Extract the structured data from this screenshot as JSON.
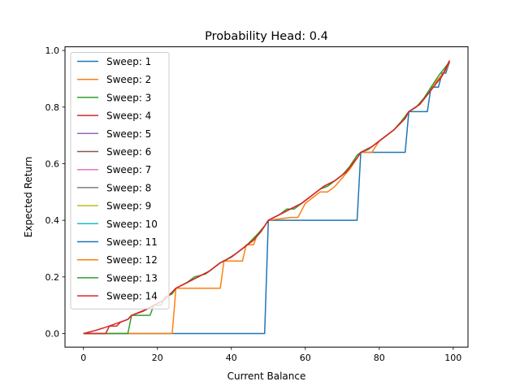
{
  "chart_data": {
    "type": "line",
    "title": "Probability Head: 0.4",
    "xlabel": "Current Balance",
    "ylabel": "Expected Return",
    "xlim": [
      -5,
      104
    ],
    "ylim": [
      -0.048,
      1.013
    ],
    "xticks": [
      0,
      20,
      40,
      60,
      80,
      100
    ],
    "xtick_labels": [
      "0",
      "20",
      "40",
      "60",
      "80",
      "100"
    ],
    "yticks": [
      0.0,
      0.2,
      0.4,
      0.6,
      0.8,
      1.0
    ],
    "ytick_labels": [
      "0.0",
      "0.2",
      "0.4",
      "0.6",
      "0.8",
      "1.0"
    ],
    "grid": false,
    "legend_position": "upper left",
    "series": [
      {
        "name": "Sweep: 1",
        "color": "#1f77b4",
        "points": [
          [
            0,
            0
          ],
          [
            49,
            0
          ],
          [
            50,
            0.4
          ],
          [
            74,
            0.4
          ],
          [
            75,
            0.64
          ],
          [
            87,
            0.64
          ],
          [
            88,
            0.784
          ],
          [
            93,
            0.784
          ],
          [
            94,
            0.8704
          ],
          [
            96,
            0.8704
          ],
          [
            97,
            0.92
          ],
          [
            98,
            0.92
          ],
          [
            99,
            0.96
          ]
        ]
      },
      {
        "name": "Sweep: 2",
        "color": "#ff7f0e",
        "points": [
          [
            0,
            0
          ],
          [
            24,
            0
          ],
          [
            25,
            0.16
          ],
          [
            37,
            0.16
          ],
          [
            38,
            0.256
          ],
          [
            43,
            0.256
          ],
          [
            44,
            0.3136
          ],
          [
            46,
            0.3136
          ],
          [
            47,
            0.35
          ],
          [
            49,
            0.38
          ],
          [
            50,
            0.4
          ],
          [
            56,
            0.41
          ],
          [
            58,
            0.41
          ],
          [
            60,
            0.46
          ],
          [
            62,
            0.48
          ],
          [
            64,
            0.5
          ],
          [
            66,
            0.5
          ],
          [
            68,
            0.52
          ],
          [
            70,
            0.55
          ],
          [
            72,
            0.58
          ],
          [
            74,
            0.62
          ],
          [
            75,
            0.64
          ],
          [
            78,
            0.64
          ],
          [
            80,
            0.68
          ],
          [
            82,
            0.7
          ],
          [
            84,
            0.72
          ],
          [
            86,
            0.75
          ],
          [
            88,
            0.784
          ],
          [
            90,
            0.8
          ],
          [
            92,
            0.83
          ],
          [
            94,
            0.87
          ],
          [
            96,
            0.9
          ],
          [
            98,
            0.93
          ],
          [
            99,
            0.96
          ]
        ]
      },
      {
        "name": "Sweep: 3",
        "color": "#2ca02c",
        "points": [
          [
            0,
            0
          ],
          [
            12,
            0
          ],
          [
            13,
            0.064
          ],
          [
            18,
            0.064
          ],
          [
            19,
            0.1
          ],
          [
            21,
            0.1
          ],
          [
            22,
            0.128
          ],
          [
            24,
            0.14
          ],
          [
            25,
            0.16
          ],
          [
            28,
            0.18
          ],
          [
            30,
            0.2
          ],
          [
            33,
            0.21
          ],
          [
            35,
            0.23
          ],
          [
            37,
            0.25
          ],
          [
            38,
            0.256
          ],
          [
            41,
            0.28
          ],
          [
            44,
            0.31
          ],
          [
            47,
            0.35
          ],
          [
            49,
            0.38
          ],
          [
            50,
            0.4
          ],
          [
            53,
            0.42
          ],
          [
            55,
            0.44
          ],
          [
            57,
            0.44
          ],
          [
            60,
            0.47
          ],
          [
            62,
            0.49
          ],
          [
            64,
            0.51
          ],
          [
            66,
            0.52
          ],
          [
            68,
            0.54
          ],
          [
            70,
            0.56
          ],
          [
            72,
            0.59
          ],
          [
            74,
            0.63
          ],
          [
            75,
            0.64
          ],
          [
            77,
            0.65
          ],
          [
            80,
            0.68
          ],
          [
            82,
            0.7
          ],
          [
            84,
            0.72
          ],
          [
            86,
            0.75
          ],
          [
            88,
            0.784
          ],
          [
            90,
            0.8
          ],
          [
            92,
            0.83
          ],
          [
            94,
            0.87
          ],
          [
            96,
            0.91
          ],
          [
            99,
            0.96
          ]
        ]
      },
      {
        "name": "Sweep: 4",
        "color": "#d62728",
        "points": [
          [
            0,
            0
          ],
          [
            6,
            0
          ],
          [
            7,
            0.026
          ],
          [
            9,
            0.026
          ],
          [
            10,
            0.04
          ],
          [
            12,
            0.05
          ],
          [
            13,
            0.064
          ],
          [
            16,
            0.08
          ],
          [
            19,
            0.1
          ],
          [
            22,
            0.12
          ],
          [
            25,
            0.16
          ],
          [
            28,
            0.18
          ],
          [
            31,
            0.2
          ],
          [
            34,
            0.22
          ],
          [
            37,
            0.25
          ],
          [
            40,
            0.27
          ],
          [
            43,
            0.3
          ],
          [
            46,
            0.33
          ],
          [
            48,
            0.36
          ],
          [
            50,
            0.4
          ],
          [
            53,
            0.42
          ],
          [
            56,
            0.44
          ],
          [
            59,
            0.46
          ],
          [
            62,
            0.49
          ],
          [
            65,
            0.52
          ],
          [
            68,
            0.54
          ],
          [
            71,
            0.57
          ],
          [
            74,
            0.62
          ],
          [
            75,
            0.64
          ],
          [
            78,
            0.66
          ],
          [
            81,
            0.69
          ],
          [
            84,
            0.72
          ],
          [
            87,
            0.76
          ],
          [
            88,
            0.784
          ],
          [
            91,
            0.81
          ],
          [
            94,
            0.86
          ],
          [
            97,
            0.91
          ],
          [
            99,
            0.96
          ]
        ]
      },
      {
        "name": "Sweep: 5",
        "color": "#9467bd",
        "points": []
      },
      {
        "name": "Sweep: 6",
        "color": "#8c564b",
        "points": []
      },
      {
        "name": "Sweep: 7",
        "color": "#e377c2",
        "points": []
      },
      {
        "name": "Sweep: 8",
        "color": "#7f7f7f",
        "points": []
      },
      {
        "name": "Sweep: 9",
        "color": "#bcbd22",
        "points": []
      },
      {
        "name": "Sweep: 10",
        "color": "#17becf",
        "points": []
      },
      {
        "name": "Sweep: 11",
        "color": "#1f77b4",
        "points": []
      },
      {
        "name": "Sweep: 12",
        "color": "#ff7f0e",
        "points": []
      },
      {
        "name": "Sweep: 13",
        "color": "#2ca02c",
        "points": []
      },
      {
        "name": "Sweep: 14",
        "color": "#d62728",
        "points": [
          [
            0,
            0
          ],
          [
            3,
            0.01
          ],
          [
            6,
            0.022
          ],
          [
            9,
            0.036
          ],
          [
            12,
            0.05
          ],
          [
            13,
            0.064
          ],
          [
            16,
            0.078
          ],
          [
            19,
            0.098
          ],
          [
            22,
            0.12
          ],
          [
            25,
            0.16
          ],
          [
            28,
            0.18
          ],
          [
            31,
            0.2
          ],
          [
            34,
            0.22
          ],
          [
            37,
            0.25
          ],
          [
            40,
            0.27
          ],
          [
            43,
            0.3
          ],
          [
            46,
            0.33
          ],
          [
            48,
            0.36
          ],
          [
            50,
            0.4
          ],
          [
            53,
            0.42
          ],
          [
            56,
            0.44
          ],
          [
            59,
            0.46
          ],
          [
            62,
            0.49
          ],
          [
            65,
            0.52
          ],
          [
            68,
            0.54
          ],
          [
            71,
            0.57
          ],
          [
            74,
            0.62
          ],
          [
            75,
            0.64
          ],
          [
            78,
            0.66
          ],
          [
            81,
            0.69
          ],
          [
            84,
            0.72
          ],
          [
            87,
            0.76
          ],
          [
            88,
            0.784
          ],
          [
            91,
            0.81
          ],
          [
            94,
            0.86
          ],
          [
            97,
            0.91
          ],
          [
            99,
            0.965
          ]
        ]
      }
    ]
  }
}
